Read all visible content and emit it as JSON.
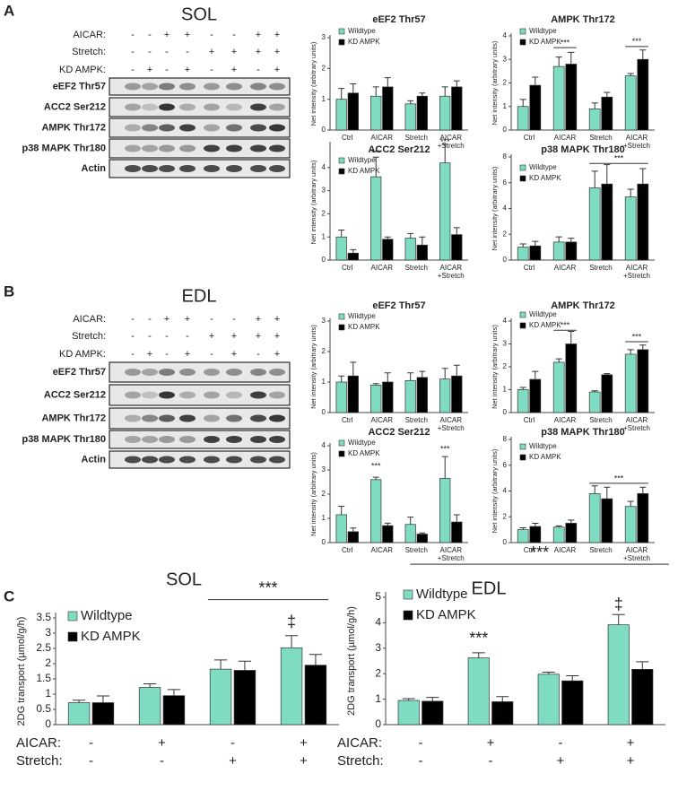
{
  "panels": [
    "A",
    "B",
    "C"
  ],
  "blots": [
    {
      "title": "SOL",
      "conditions": [
        {
          "name": "AICAR:",
          "signs": [
            "-",
            "-",
            "+",
            "+",
            "-",
            "-",
            "+",
            "+"
          ]
        },
        {
          "name": "Stretch:",
          "signs": [
            "-",
            "-",
            "-",
            "-",
            "+",
            "+",
            "+",
            "+"
          ]
        },
        {
          "name": "KD AMPK:",
          "signs": [
            "-",
            "+",
            "-",
            "+",
            "-",
            "+",
            "-",
            "+"
          ]
        }
      ],
      "rows": [
        "eEF2 Thr57",
        "ACC2 Ser212",
        "AMPK Thr172",
        "p38 MAPK Thr180",
        "Actin"
      ]
    },
    {
      "title": "EDL",
      "conditions": [
        {
          "name": "AICAR:",
          "signs": [
            "-",
            "-",
            "+",
            "+",
            "-",
            "-",
            "+",
            "+"
          ]
        },
        {
          "name": "Stretch:",
          "signs": [
            "-",
            "-",
            "-",
            "-",
            "+",
            "+",
            "+",
            "+"
          ]
        },
        {
          "name": "KD AMPK:",
          "signs": [
            "-",
            "+",
            "-",
            "+",
            "-",
            "+",
            "-",
            "+"
          ]
        }
      ],
      "rows": [
        "eEF2 Thr57",
        "ACC2 Ser212",
        "AMPK Thr172",
        "p38 MAPK Thr180",
        "Actin"
      ]
    }
  ],
  "chart_data": [
    {
      "type": "bar",
      "title": "eEF2 Thr57",
      "y_label": "Net intensity (arbitrary units)",
      "categories": [
        "Ctrl",
        "AICAR",
        "Stretch",
        "AICAR\n+Stretch"
      ],
      "ylim": [
        0,
        3
      ],
      "yticks": [
        0,
        1,
        2,
        3
      ],
      "series": [
        {
          "name": "Wildtype",
          "color": "#7fdbc2",
          "values": [
            1.0,
            1.1,
            0.85,
            1.1
          ],
          "errors": [
            0.35,
            0.3,
            0.1,
            0.3
          ]
        },
        {
          "name": "KD AMPK",
          "color": "#000000",
          "values": [
            1.2,
            1.4,
            1.1,
            1.4
          ],
          "errors": [
            0.3,
            0.3,
            0.1,
            0.2
          ]
        }
      ],
      "annotations": []
    },
    {
      "type": "bar",
      "title": "AMPK Thr172",
      "y_label": "Net intensity (arbitrary units)",
      "categories": [
        "Ctrl",
        "AICAR",
        "Stretch",
        "AICAR\n+Stretch"
      ],
      "ylim": [
        0,
        4
      ],
      "yticks": [
        0,
        1,
        2,
        3,
        4
      ],
      "series": [
        {
          "name": "Wildtype",
          "color": "#7fdbc2",
          "values": [
            1.0,
            2.7,
            0.9,
            2.3
          ],
          "errors": [
            0.3,
            0.4,
            0.25,
            0.1
          ]
        },
        {
          "name": "KD AMPK",
          "color": "#000000",
          "values": [
            1.9,
            2.8,
            1.4,
            3.0
          ],
          "errors": [
            0.35,
            0.5,
            0.2,
            0.4
          ]
        }
      ],
      "annotations": [
        "***",
        "***"
      ]
    },
    {
      "type": "bar",
      "title": "ACC2 Ser212",
      "y_label": "Net intensity (arbitrary units)",
      "categories": [
        "Ctrl",
        "AICAR",
        "Stretch",
        "AICAR\n+Stretch"
      ],
      "ylim": [
        0,
        5
      ],
      "yticks": [
        0,
        1,
        2,
        3,
        4
      ],
      "series": [
        {
          "name": "Wildtype",
          "color": "#7fdbc2",
          "values": [
            1.0,
            3.6,
            0.95,
            4.2
          ],
          "errors": [
            0.3,
            0.85,
            0.2,
            0.8
          ]
        },
        {
          "name": "KD AMPK",
          "color": "#000000",
          "values": [
            0.3,
            0.9,
            0.65,
            1.1
          ],
          "errors": [
            0.15,
            0.1,
            0.35,
            0.3
          ]
        }
      ],
      "annotations": [
        "***",
        "***"
      ]
    },
    {
      "type": "bar",
      "title": "p38 MAPK Thr180",
      "y_label": "Net intensity (arbitrary units)",
      "categories": [
        "Ctrl",
        "AICAR",
        "Stretch",
        "AICAR\n+Stretch"
      ],
      "ylim": [
        0,
        8
      ],
      "yticks": [
        0,
        2,
        4,
        6,
        8
      ],
      "series": [
        {
          "name": "Wildtype",
          "color": "#7fdbc2",
          "values": [
            1.0,
            1.4,
            5.6,
            4.9
          ],
          "errors": [
            0.25,
            0.4,
            1.3,
            0.6
          ]
        },
        {
          "name": "KD AMPK",
          "color": "#000000",
          "values": [
            1.1,
            1.4,
            5.9,
            5.9
          ],
          "errors": [
            0.35,
            0.3,
            1.5,
            1.2
          ]
        }
      ],
      "annotations": [
        "***"
      ]
    },
    {
      "type": "bar",
      "title": "eEF2 Thr57",
      "y_label": "Net intensity (arbitrary units)",
      "categories": [
        "Ctrl",
        "AICAR",
        "Stretch",
        "AICAR\n+Stretch"
      ],
      "ylim": [
        0,
        3
      ],
      "yticks": [
        0,
        1,
        2,
        3
      ],
      "series": [
        {
          "name": "Wildtype",
          "color": "#7fdbc2",
          "values": [
            1.0,
            0.9,
            1.05,
            1.1
          ],
          "errors": [
            0.2,
            0.05,
            0.25,
            0.35
          ]
        },
        {
          "name": "KD AMPK",
          "color": "#000000",
          "values": [
            1.2,
            1.0,
            1.15,
            1.2
          ],
          "errors": [
            0.45,
            0.3,
            0.2,
            0.35
          ]
        }
      ],
      "annotations": []
    },
    {
      "type": "bar",
      "title": "AMPK Thr172",
      "y_label": "Net intensity (arbitrary units)",
      "categories": [
        "Ctrl",
        "AICAR",
        "Stretch",
        "AICAR\n+Stretch"
      ],
      "ylim": [
        0,
        4
      ],
      "yticks": [
        0,
        1,
        2,
        3,
        4
      ],
      "series": [
        {
          "name": "Wildtype",
          "color": "#7fdbc2",
          "values": [
            1.0,
            2.2,
            0.9,
            2.55
          ],
          "errors": [
            0.1,
            0.15,
            0.05,
            0.2
          ]
        },
        {
          "name": "KD AMPK",
          "color": "#000000",
          "values": [
            1.45,
            3.0,
            1.65,
            2.75
          ],
          "errors": [
            0.35,
            0.55,
            0.05,
            0.2
          ]
        }
      ],
      "annotations": [
        "***",
        "***"
      ]
    },
    {
      "type": "bar",
      "title": "ACC2 Ser212",
      "y_label": "Net intensity (arbitrary units)",
      "categories": [
        "Ctrl",
        "AICAR",
        "Stretch",
        "AICAR\n+Stretch"
      ],
      "ylim": [
        0,
        4
      ],
      "yticks": [
        0,
        1,
        2,
        3,
        4
      ],
      "series": [
        {
          "name": "Wildtype",
          "color": "#7fdbc2",
          "values": [
            1.15,
            2.6,
            0.75,
            2.65
          ],
          "errors": [
            0.35,
            0.1,
            0.3,
            0.9
          ]
        },
        {
          "name": "KD AMPK",
          "color": "#000000",
          "values": [
            0.45,
            0.7,
            0.35,
            0.85
          ],
          "errors": [
            0.15,
            0.1,
            0.05,
            0.3
          ]
        }
      ],
      "annotations": [
        "***",
        "***"
      ]
    },
    {
      "type": "bar",
      "title": "p38 MAPK Thr180",
      "y_label": "Net intensity (arbitrary units)",
      "categories": [
        "Ctrl",
        "AICAR",
        "Stretch",
        "AICAR\n+Stretch"
      ],
      "ylim": [
        0,
        8
      ],
      "yticks": [
        0,
        2,
        4,
        6,
        8
      ],
      "series": [
        {
          "name": "Wildtype",
          "color": "#7fdbc2",
          "values": [
            1.0,
            1.2,
            3.8,
            2.8
          ],
          "errors": [
            0.15,
            0.1,
            0.6,
            0.4
          ]
        },
        {
          "name": "KD AMPK",
          "color": "#000000",
          "values": [
            1.25,
            1.5,
            3.4,
            3.8
          ],
          "errors": [
            0.25,
            0.25,
            0.9,
            0.5
          ]
        }
      ],
      "annotations": [
        "***"
      ]
    },
    {
      "type": "bar",
      "title": "SOL",
      "y_label": "2DG transport (µmol/g/h)",
      "categories": [
        null,
        null,
        null,
        null
      ],
      "ylim": [
        0,
        3.5
      ],
      "yticks": [
        0,
        0.5,
        1,
        1.5,
        2,
        2.5,
        3,
        3.5
      ],
      "series": [
        {
          "name": "Wildtype",
          "color": "#7fdbc2",
          "values": [
            0.72,
            1.22,
            1.82,
            2.52
          ],
          "errors": [
            0.08,
            0.12,
            0.3,
            0.4
          ]
        },
        {
          "name": "KD AMPK",
          "color": "#000000",
          "values": [
            0.72,
            0.95,
            1.78,
            1.95
          ],
          "errors": [
            0.22,
            0.2,
            0.3,
            0.35
          ]
        }
      ],
      "conditions": [
        {
          "name": "AICAR:",
          "signs": [
            "-",
            "+",
            "-",
            "+"
          ]
        },
        {
          "name": "Stretch:",
          "signs": [
            "-",
            "-",
            "+",
            "+"
          ]
        }
      ],
      "annotations": [
        "***",
        "‡"
      ]
    },
    {
      "type": "bar",
      "title": "EDL",
      "y_label": "2DG transport (µmol/g/h)",
      "categories": [
        null,
        null,
        null,
        null
      ],
      "ylim": [
        0,
        5
      ],
      "yticks": [
        0,
        1,
        2,
        3,
        4,
        5
      ],
      "series": [
        {
          "name": "Wildtype",
          "color": "#7fdbc2",
          "values": [
            0.95,
            2.62,
            1.98,
            3.92
          ],
          "errors": [
            0.07,
            0.2,
            0.08,
            0.4
          ]
        },
        {
          "name": "KD AMPK",
          "color": "#000000",
          "values": [
            0.92,
            0.9,
            1.72,
            2.17
          ],
          "errors": [
            0.15,
            0.2,
            0.2,
            0.3
          ]
        }
      ],
      "conditions": [
        {
          "name": "AICAR:",
          "signs": [
            "-",
            "+",
            "-",
            "+"
          ]
        },
        {
          "name": "Stretch:",
          "signs": [
            "-",
            "-",
            "+",
            "+"
          ]
        }
      ],
      "annotations": [
        "***",
        "***",
        "‡"
      ]
    }
  ]
}
